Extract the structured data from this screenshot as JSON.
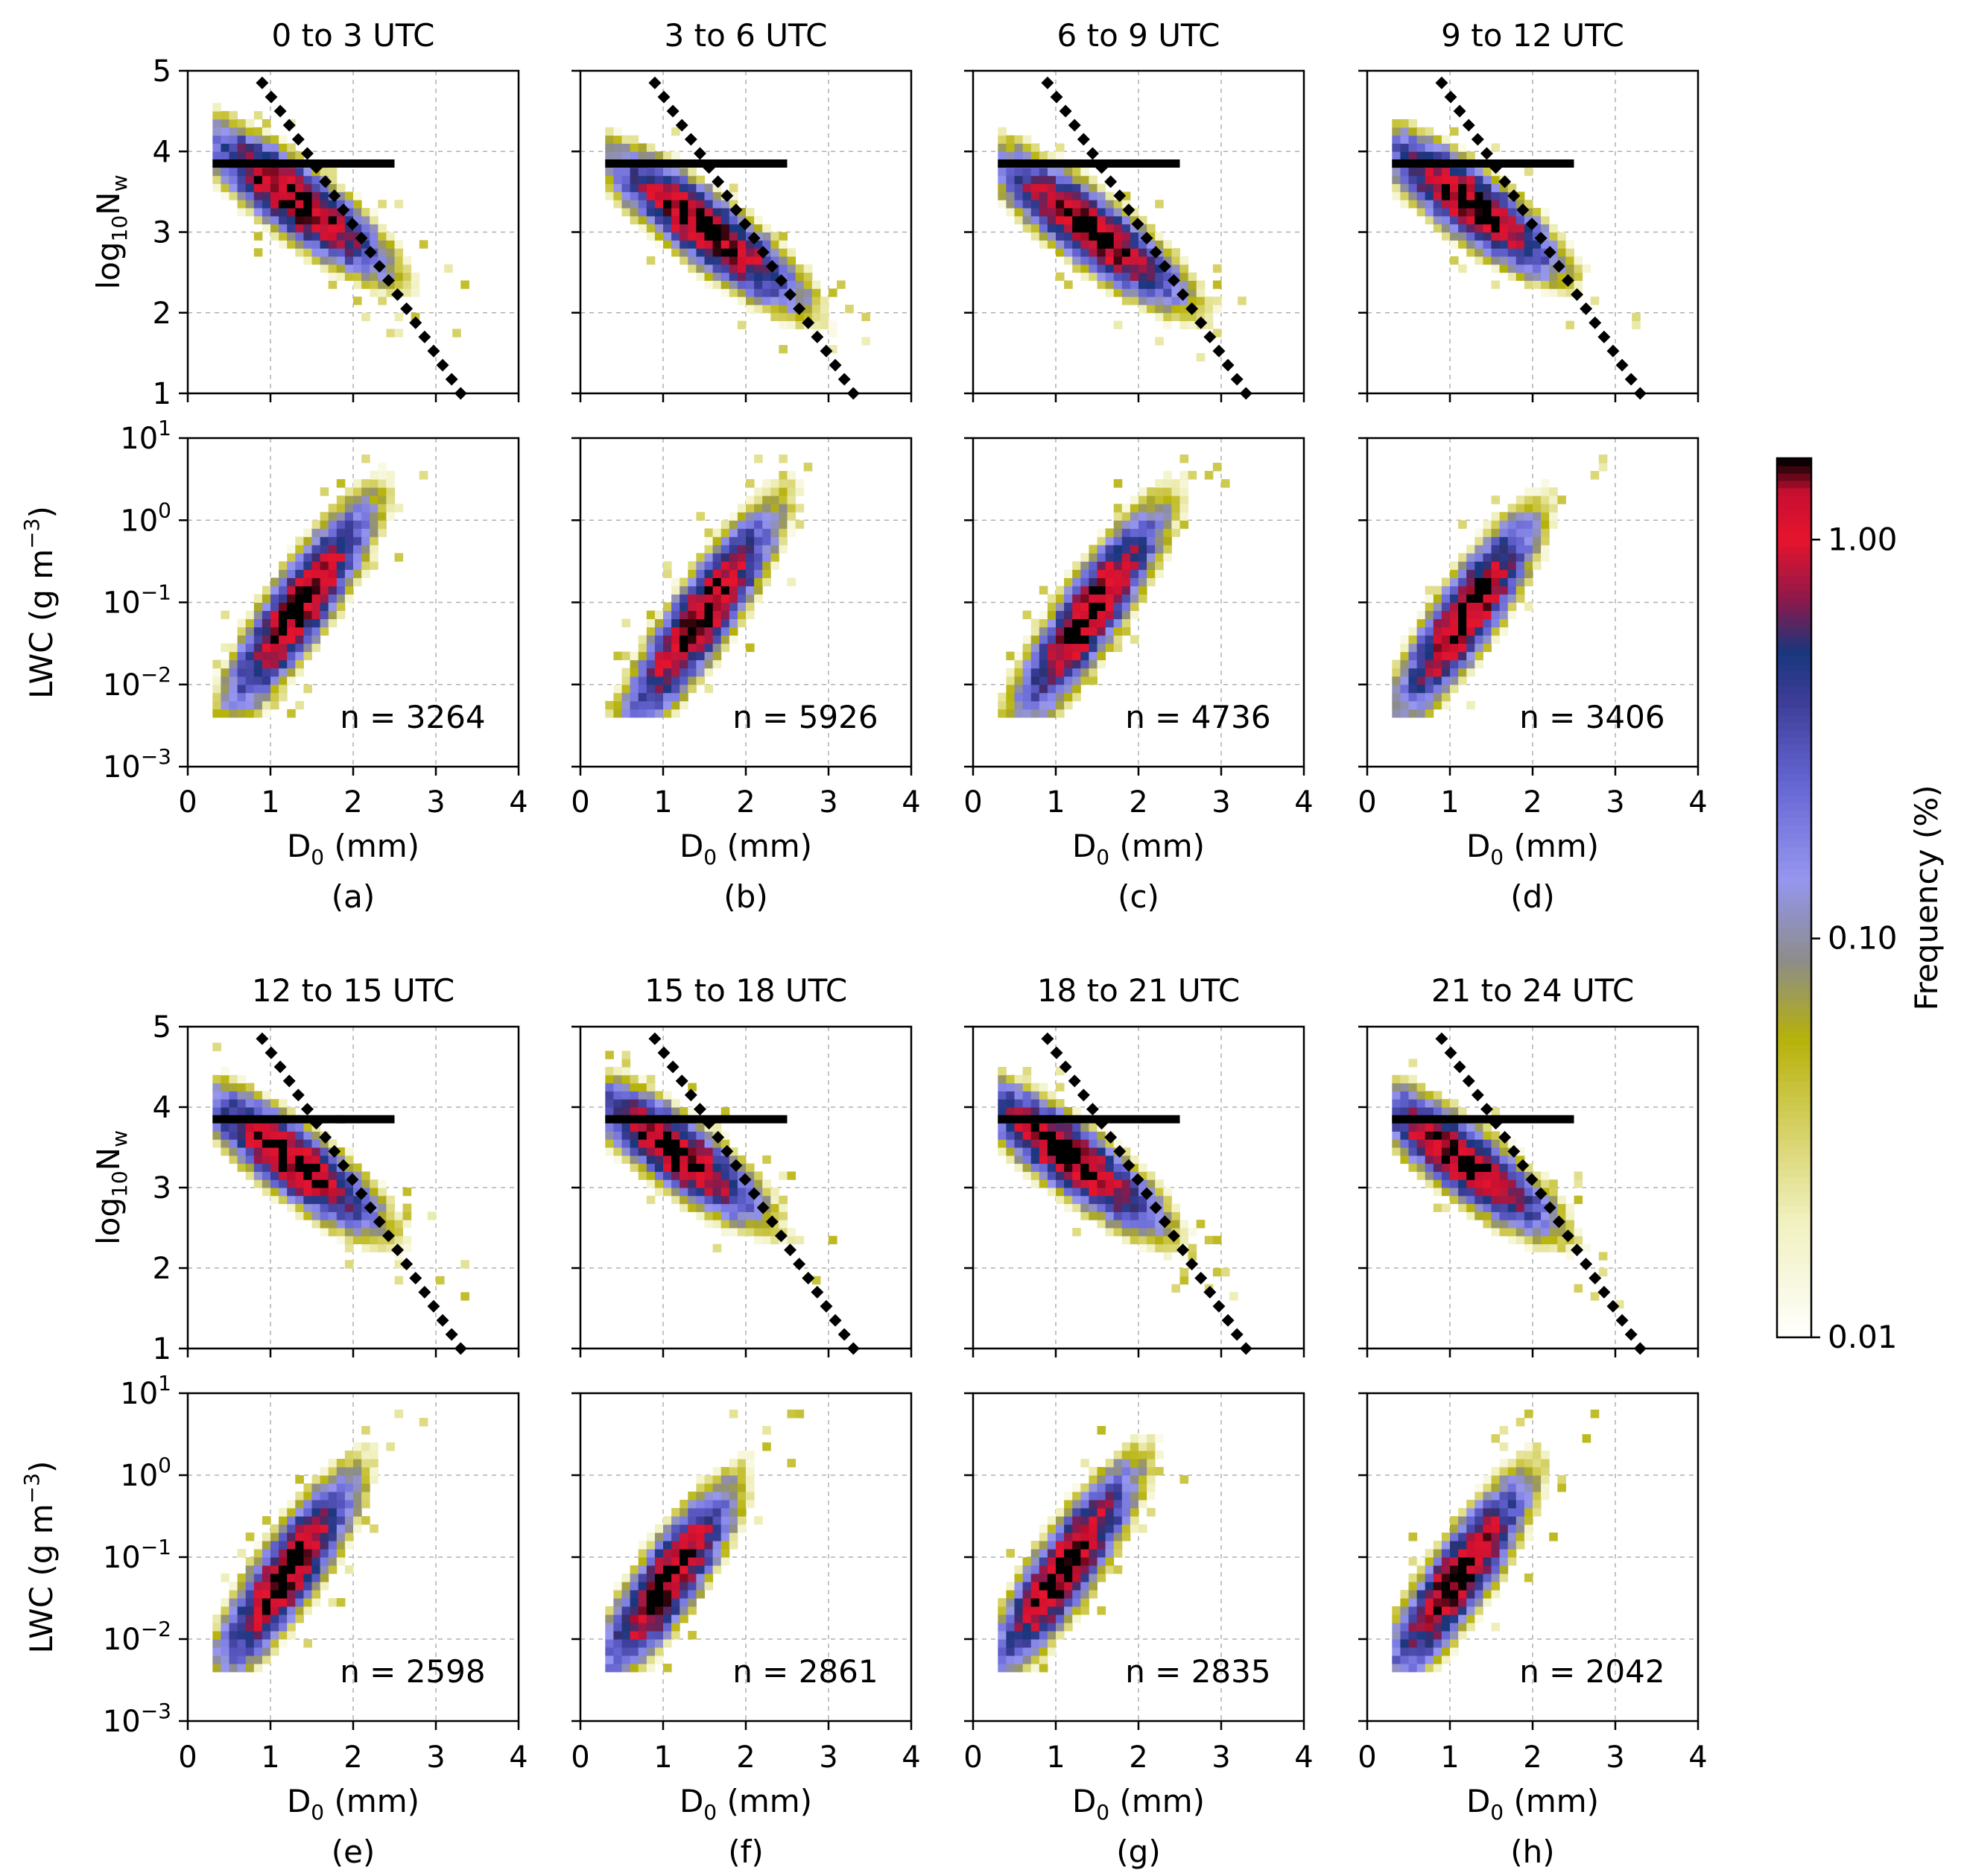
{
  "chart_data": {
    "type": "heatmap",
    "colorbar": {
      "label": "Frequency (%)",
      "scale": "log",
      "range": [
        0.01,
        1.6
      ],
      "ticks": [
        0.01,
        0.1,
        1.0
      ],
      "tick_labels": [
        "0.01",
        "0.10",
        "1.00"
      ],
      "colors": [
        "#ffffff",
        "#f3f3c4",
        "#c9c43a",
        "#b5b200",
        "#8c8c8c",
        "#7c7cff",
        "#5a5acc",
        "#3e3e99",
        "#1a3a7a",
        "#8a1a4a",
        "#e2102a",
        "#c2103a",
        "#000000"
      ]
    },
    "rows": [
      {
        "nw_axis": {
          "ylabel": "log10Nw",
          "ylabel_base": "log",
          "ylabel_sub": "10",
          "ylabel_rest": "N",
          "ylabel_sub2": "w",
          "ylim": [
            1,
            5
          ],
          "yticks": [
            1,
            2,
            3,
            4,
            5
          ],
          "ytick_labels": [
            "1",
            "2",
            "3",
            "4",
            "5"
          ]
        },
        "lwc_axis": {
          "ylabel": "LWC (g m^-3)",
          "ylabel_main": "LWC (g m",
          "ylabel_sup": "−3",
          "ylabel_end": ")",
          "ylim_log": [
            -3,
            1
          ],
          "yticks_exp": [
            1,
            0,
            -1,
            -2,
            -3
          ],
          "ytick_base": "10",
          "ytick_exps": [
            "1",
            "0",
            "−1",
            "−2",
            "−3"
          ]
        },
        "x_axis": {
          "xlabel_main": "D",
          "xlabel_sub": "0",
          "xlabel_rest": " (mm)",
          "xlim": [
            0,
            4
          ],
          "xticks": [
            0,
            1,
            2,
            3,
            4
          ],
          "xtick_labels": [
            "0",
            "1",
            "2",
            "3",
            "4"
          ]
        },
        "panels": [
          {
            "title": "0 to 3 UTC",
            "label": "(a)",
            "count": "n = 3264",
            "nw_center": [
              1.25,
              3.35
            ],
            "lwc_center": [
              1.3,
              -1.1
            ],
            "spread": 1.0
          },
          {
            "title": "3 to 6 UTC",
            "label": "(b)",
            "count": "n = 5926",
            "nw_center": [
              1.45,
              3.0
            ],
            "lwc_center": [
              1.4,
              -1.25
            ],
            "spread": 1.1
          },
          {
            "title": "6 to 9 UTC",
            "label": "(c)",
            "count": "n = 4736",
            "nw_center": [
              1.35,
              3.0
            ],
            "lwc_center": [
              1.35,
              -1.2
            ],
            "spread": 1.05
          },
          {
            "title": "9 to 12 UTC",
            "label": "(d)",
            "count": "n = 3406",
            "nw_center": [
              1.2,
              3.3
            ],
            "lwc_center": [
              1.15,
              -1.2
            ],
            "spread": 0.9
          }
        ]
      },
      {
        "nw_axis": {
          "ylabel": "log10Nw",
          "ylabel_base": "log",
          "ylabel_sub": "10",
          "ylabel_rest": "N",
          "ylabel_sub2": "w",
          "ylim": [
            1,
            5
          ],
          "yticks": [
            1,
            2,
            3,
            4,
            5
          ],
          "ytick_labels": [
            "1",
            "2",
            "3",
            "4",
            "5"
          ]
        },
        "lwc_axis": {
          "ylabel": "LWC (g m^-3)",
          "ylabel_main": "LWC (g m",
          "ylabel_sup": "−3",
          "ylabel_end": ")",
          "ylim_log": [
            -3,
            1
          ],
          "yticks_exp": [
            1,
            0,
            -1,
            -2,
            -3
          ],
          "ytick_base": "10",
          "ytick_exps": [
            "1",
            "0",
            "−1",
            "−2",
            "−3"
          ]
        },
        "x_axis": {
          "xlabel_main": "D",
          "xlabel_sub": "0",
          "xlabel_rest": " (mm)",
          "xlim": [
            0,
            4
          ],
          "xticks": [
            0,
            1,
            2,
            3,
            4
          ],
          "xtick_labels": [
            "0",
            "1",
            "2",
            "3",
            "4"
          ]
        },
        "panels": [
          {
            "title": "12 to 15 UTC",
            "label": "(e)",
            "count": "n = 2598",
            "nw_center": [
              1.2,
              3.3
            ],
            "lwc_center": [
              1.15,
              -1.25
            ],
            "spread": 0.9
          },
          {
            "title": "15 to 18 UTC",
            "label": "(f)",
            "count": "n = 2861",
            "nw_center": [
              1.1,
              3.4
            ],
            "lwc_center": [
              1.0,
              -1.35
            ],
            "spread": 0.85
          },
          {
            "title": "18 to 21 UTC",
            "label": "(g)",
            "count": "n = 2835",
            "nw_center": [
              1.1,
              3.35
            ],
            "lwc_center": [
              1.05,
              -1.2
            ],
            "spread": 1.0
          },
          {
            "title": "21 to 24 UTC",
            "label": "(h)",
            "count": "n = 2042",
            "nw_center": [
              1.1,
              3.3
            ],
            "lwc_center": [
              1.05,
              -1.3
            ],
            "spread": 0.95
          }
        ]
      }
    ],
    "reference_lines": {
      "horizontal_bar": {
        "x": [
          0.3,
          2.5
        ],
        "y": 3.85,
        "style": "solid-thick"
      },
      "dotted_line": {
        "x": [
          0.9,
          3.3
        ],
        "y": [
          4.85,
          1.0
        ],
        "style": "dotted"
      }
    }
  }
}
